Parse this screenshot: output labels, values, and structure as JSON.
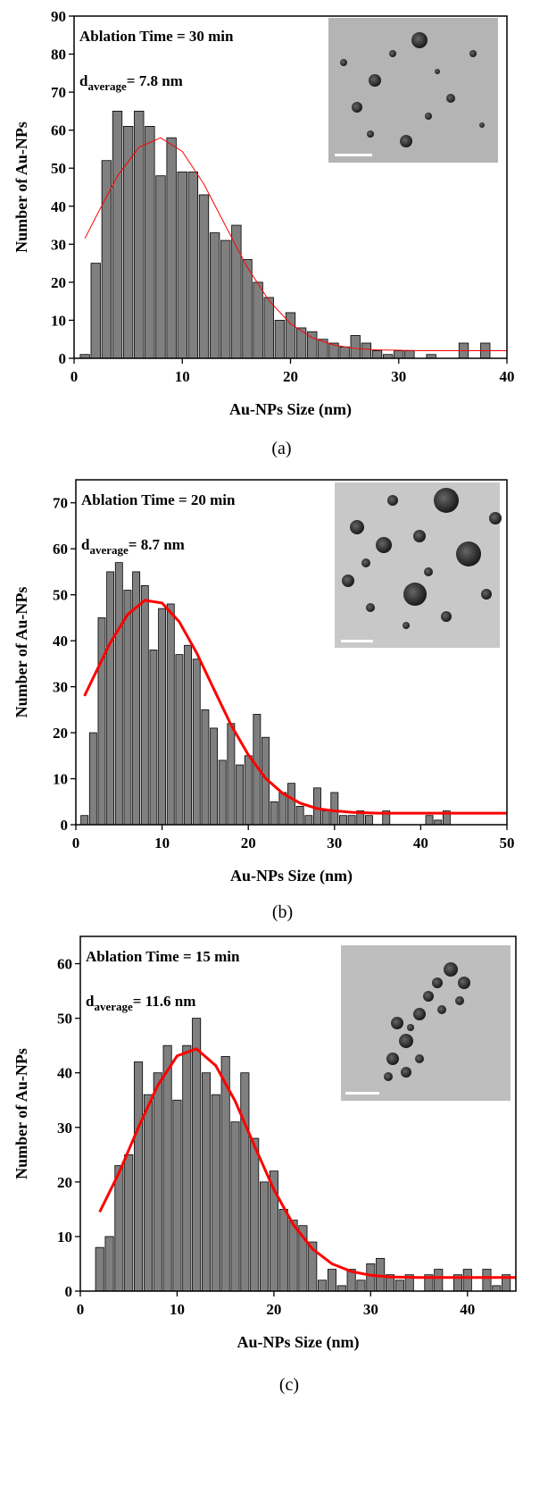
{
  "chart_data": [
    {
      "type": "histogram",
      "annotation": "Ablation Time = 30 min",
      "d_label": "d",
      "d_sub": "average",
      "d_value": "= 7.8 nm",
      "xlabel": "Au-NPs Size (nm)",
      "ylabel": "Number of Au-NPs",
      "caption": "(a)",
      "color": "#7f7f7f",
      "bins": [
        0.5,
        1.5,
        2.5,
        3.5,
        4.5,
        5.5,
        6.5,
        7.5,
        8.5,
        9.5,
        10.5,
        11.5,
        12.5,
        13.5,
        14.5,
        15.5,
        16.5,
        17.5,
        18.5,
        19.5,
        20.5,
        21.5,
        22.5,
        23.5,
        24.5,
        25.5,
        26.5,
        27.5,
        28.5,
        29.5,
        30.5,
        31.5,
        32.5,
        33.5,
        34.5,
        35.5,
        36.5,
        37.5,
        38.5
      ],
      "values": [
        1,
        25,
        52,
        65,
        61,
        65,
        61,
        48,
        58,
        49,
        49,
        43,
        33,
        31,
        35,
        26,
        20,
        16,
        10,
        12,
        8,
        7,
        5,
        4,
        3,
        6,
        4,
        2,
        1,
        2,
        2,
        0,
        1,
        0,
        0,
        4,
        0,
        4
      ],
      "fit": {
        "color": "#ff0000",
        "width": 1,
        "x": [
          1,
          2,
          4,
          6,
          8,
          10,
          12,
          14,
          16,
          18,
          20,
          22,
          24,
          26,
          28,
          30,
          32,
          35,
          40
        ],
        "values": [
          31.5,
          37.1,
          47.9,
          55.5,
          58,
          54.4,
          45.8,
          34.8,
          24,
          15.2,
          9.1,
          5.4,
          3.5,
          2.6,
          2.2,
          2.1,
          2,
          2,
          2
        ]
      },
      "xlim": [
        0,
        40
      ],
      "xticks": [
        0,
        10,
        20,
        30,
        40
      ],
      "ylim": [
        0,
        90
      ],
      "yticks": [
        0,
        10,
        20,
        30,
        40,
        50,
        60,
        70,
        80,
        90
      ]
    },
    {
      "type": "histogram",
      "annotation": "Ablation Time = 20 min",
      "d_label": "d",
      "d_sub": "average",
      "d_value": "= 8.7 nm",
      "xlabel": "Au-NPs Size (nm)",
      "ylabel": "Number of Au-NPs",
      "caption": "(b)",
      "color": "#7f7f7f",
      "bins": [
        0.5,
        1.5,
        2.5,
        3.5,
        4.5,
        5.5,
        6.5,
        7.5,
        8.5,
        9.5,
        10.5,
        11.5,
        12.5,
        13.5,
        14.5,
        15.5,
        16.5,
        17.5,
        18.5,
        19.5,
        20.5,
        21.5,
        22.5,
        23.5,
        24.5,
        25.5,
        26.5,
        27.5,
        28.5,
        29.5,
        30.5,
        31.5,
        32.5,
        33.5,
        34.5,
        35.5,
        36.5,
        37.5,
        38.5,
        39.5,
        40.5,
        41.5,
        42.5,
        43.5
      ],
      "values": [
        2,
        20,
        45,
        55,
        57,
        51,
        55,
        52,
        38,
        47,
        48,
        37,
        39,
        36,
        25,
        21,
        14,
        22,
        13,
        15,
        24,
        19,
        5,
        7,
        9,
        4,
        2,
        8,
        3,
        7,
        2,
        2,
        3,
        2,
        0,
        3,
        0,
        0,
        0,
        0,
        2,
        1,
        3
      ],
      "fit": {
        "color": "#ff0000",
        "width": 3,
        "x": [
          1,
          2,
          4,
          6,
          8,
          10,
          12,
          14,
          16,
          18,
          20,
          22,
          24,
          26,
          28,
          30,
          32,
          35,
          40,
          45,
          50
        ],
        "values": [
          28,
          31.9,
          39.6,
          45.7,
          48.8,
          48.2,
          44.1,
          37.4,
          29.5,
          21.7,
          15.2,
          10.1,
          6.8,
          4.7,
          3.5,
          3,
          2.7,
          2.5,
          2.5,
          2.5,
          2.5
        ]
      },
      "xlim": [
        0,
        50
      ],
      "xticks": [
        0,
        10,
        20,
        30,
        40,
        50
      ],
      "ylim": [
        0,
        75
      ],
      "yticks": [
        0,
        10,
        20,
        30,
        40,
        50,
        60,
        70
      ]
    },
    {
      "type": "histogram",
      "annotation": "Ablation Time = 15 min",
      "d_label": "d",
      "d_sub": "average",
      "d_value": "= 11.6 nm",
      "xlabel": "Au-NPs Size (nm)",
      "ylabel": "Number of Au-NPs",
      "caption": "(c)",
      "color": "#7f7f7f",
      "bins": [
        1.5,
        2.5,
        3.5,
        4.5,
        5.5,
        6.5,
        7.5,
        8.5,
        9.5,
        10.5,
        11.5,
        12.5,
        13.5,
        14.5,
        15.5,
        16.5,
        17.5,
        18.5,
        19.5,
        20.5,
        21.5,
        22.5,
        23.5,
        24.5,
        25.5,
        26.5,
        27.5,
        28.5,
        29.5,
        30.5,
        31.5,
        32.5,
        33.5,
        34.5,
        35.5,
        36.5,
        37.5,
        38.5,
        39.5,
        40.5,
        41.5,
        42.5,
        43.5,
        44.5
      ],
      "values": [
        8,
        10,
        23,
        25,
        42,
        36,
        40,
        45,
        35,
        45,
        50,
        40,
        36,
        43,
        31,
        40,
        28,
        20,
        22,
        15,
        13,
        12,
        9,
        2,
        4,
        1,
        4,
        2,
        5,
        6,
        3,
        2,
        3,
        0,
        3,
        4,
        0,
        3,
        4,
        0,
        4,
        1,
        3
      ],
      "fit": {
        "color": "#ff0000",
        "width": 3,
        "x": [
          2,
          4,
          6,
          8,
          10,
          12,
          14,
          16,
          18,
          20,
          22,
          24,
          26,
          28,
          30,
          32,
          35,
          40,
          45
        ],
        "values": [
          14.5,
          21.7,
          30,
          37.7,
          43.1,
          44.4,
          41.3,
          34.8,
          26.6,
          18.6,
          12.2,
          7.7,
          5,
          3.6,
          2.9,
          2.6,
          2.5,
          2.5,
          2.5
        ]
      },
      "xlim": [
        0,
        45
      ],
      "xticks": [
        0,
        10,
        20,
        30,
        40
      ],
      "ylim": [
        0,
        65
      ],
      "yticks": [
        0,
        10,
        20,
        30,
        40,
        50,
        60
      ]
    }
  ]
}
